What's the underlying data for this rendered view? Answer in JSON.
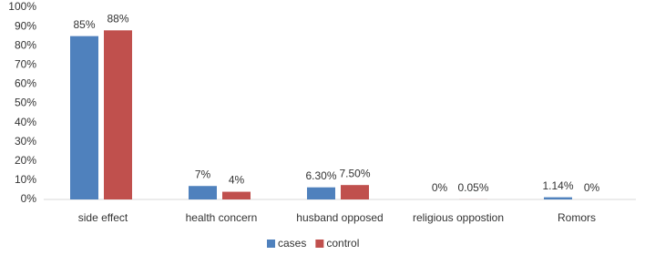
{
  "chart_data": {
    "type": "bar",
    "categories": [
      "side effect",
      "health concern",
      "husband opposed",
      "religious oppostion",
      "Romors"
    ],
    "series": [
      {
        "name": "cases",
        "color": "#4f81bd",
        "values": [
          85,
          7,
          6.3,
          0,
          1.14
        ],
        "value_labels": [
          "85%",
          "7%",
          "6.30%",
          "0%",
          "1.14%"
        ]
      },
      {
        "name": "control",
        "color": "#c0504d",
        "values": [
          88,
          4,
          7.5,
          0.05,
          0
        ],
        "value_labels": [
          "88%",
          "4%",
          "7.50%",
          "0.05%",
          "0%"
        ]
      }
    ],
    "ylim": [
      0,
      100
    ],
    "yticks": [
      {
        "value": 0,
        "label": "0%"
      },
      {
        "value": 10,
        "label": "10%"
      },
      {
        "value": 20,
        "label": "20%"
      },
      {
        "value": 30,
        "label": "30%"
      },
      {
        "value": 40,
        "label": "40%"
      },
      {
        "value": 50,
        "label": "50%"
      },
      {
        "value": 60,
        "label": "60%"
      },
      {
        "value": 70,
        "label": "70%"
      },
      {
        "value": 80,
        "label": "80%"
      },
      {
        "value": 90,
        "label": "90%"
      },
      {
        "value": 100,
        "label": "100%"
      }
    ],
    "grid": false,
    "legend": "bottom"
  }
}
